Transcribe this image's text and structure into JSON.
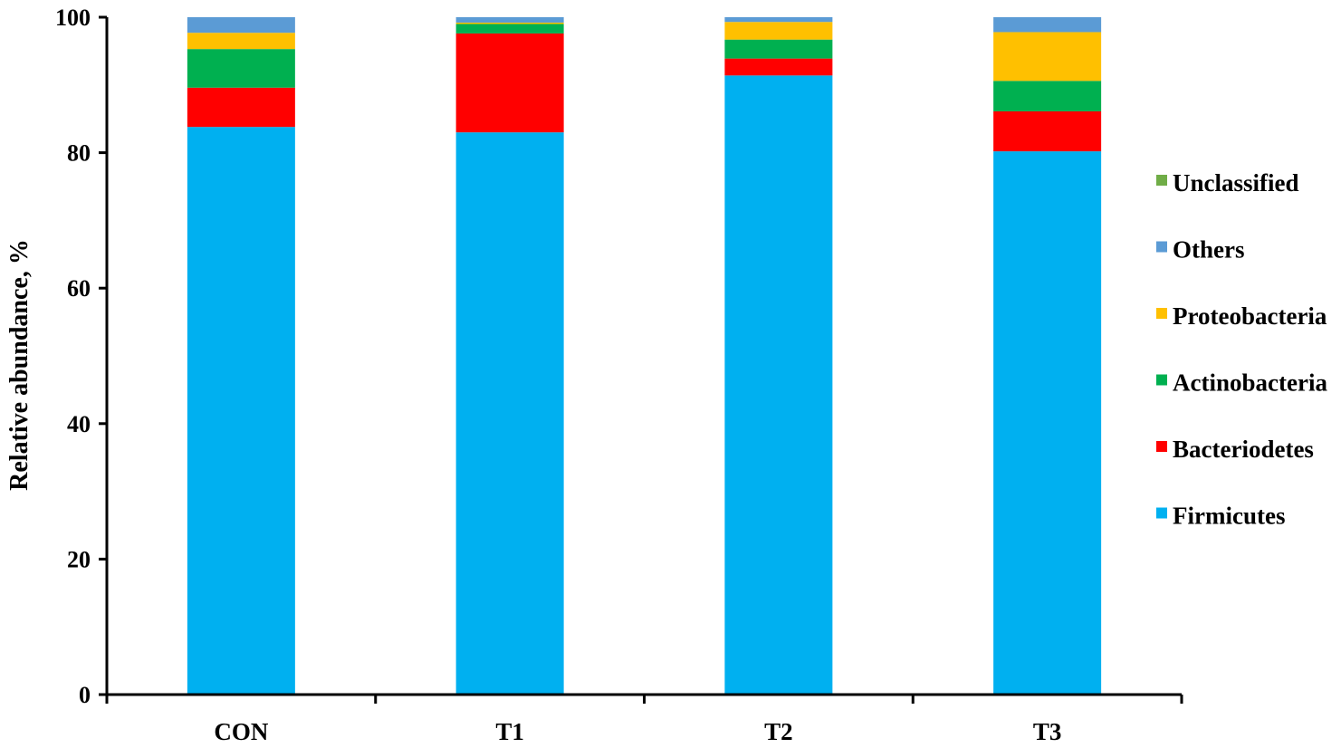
{
  "chart_data": {
    "type": "bar",
    "stacked": true,
    "categories": [
      "CON",
      "T1",
      "T2",
      "T3"
    ],
    "ylabel": "Relative abundance, %",
    "xlabel": "",
    "ylim": [
      0,
      100
    ],
    "yticks": [
      "0",
      "20",
      "40",
      "60",
      "80",
      "100"
    ],
    "grid": false,
    "legend_position": "right",
    "series": [
      {
        "name": "Firmicutes",
        "color": "#00B0F0",
        "values": [
          83.8,
          83.0,
          91.4,
          80.2
        ]
      },
      {
        "name": "Bacteriodetes",
        "color": "#FF0000",
        "values": [
          5.8,
          14.6,
          2.5,
          5.9
        ]
      },
      {
        "name": "Actinobacteria",
        "color": "#00B050",
        "values": [
          5.7,
          1.4,
          2.8,
          4.5
        ]
      },
      {
        "name": "Proteobacteria",
        "color": "#FFC000",
        "values": [
          2.4,
          0.2,
          2.6,
          7.2
        ]
      },
      {
        "name": "Others",
        "color": "#5B9BD5",
        "values": [
          2.3,
          0.8,
          0.7,
          2.2
        ]
      },
      {
        "name": "Unclassified",
        "color": "#70AD47",
        "values": [
          0.0,
          0.0,
          0.0,
          0.0
        ]
      }
    ]
  }
}
